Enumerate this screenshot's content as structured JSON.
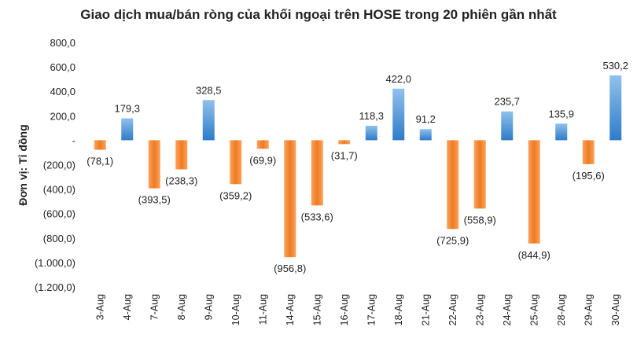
{
  "chart_data": {
    "type": "bar",
    "title": "Giao dịch mua/bán ròng của khối ngoại trên HOSE trong 20 phiên gần nhất",
    "ylabel": "Đơn vị: Tỉ đồng",
    "xlabel": "",
    "ylim": [
      -1200,
      800
    ],
    "yticks": [
      800,
      600,
      400,
      200,
      0,
      -200,
      -400,
      -600,
      -800,
      -1000,
      -1200
    ],
    "ytick_labels": [
      "800,0",
      "600,0",
      "400,0",
      "200,0",
      "-",
      "(200,0)",
      "(400,0)",
      "(600,0)",
      "(800,0)",
      "(1.000,0)",
      "(1.200,0)"
    ],
    "categories": [
      "3-Aug",
      "4-Aug",
      "7-Aug",
      "8-Aug",
      "9-Aug",
      "10-Aug",
      "11-Aug",
      "14-Aug",
      "15-Aug",
      "16-Aug",
      "17-Aug",
      "18-Aug",
      "21-Aug",
      "22-Aug",
      "23-Aug",
      "24-Aug",
      "25-Aug",
      "28-Aug",
      "29-Aug",
      "30-Aug"
    ],
    "values": [
      -78.1,
      179.3,
      -393.5,
      -238.3,
      328.5,
      -359.2,
      -69.9,
      -956.8,
      -533.6,
      -31.7,
      118.3,
      422.0,
      91.2,
      -725.9,
      -558.9,
      235.7,
      -844.9,
      135.9,
      -195.6,
      530.2
    ],
    "data_labels": [
      "(78,1)",
      "179,3",
      "(393,5)",
      "(238,3)",
      "328,5",
      "(359,2)",
      "(69,9)",
      "(956,8)",
      "(533,6)",
      "(31,7)",
      "118,3",
      "422,0",
      "91,2",
      "(725,9)",
      "(558,9)",
      "235,7",
      "(844,9)",
      "135,9",
      "(195,6)",
      "530,2"
    ],
    "colors": {
      "positive_top": "#8fc1ec",
      "positive_bottom": "#2f7bc9",
      "negative_light": "#fba35a",
      "negative_dark": "#ef7a24"
    },
    "grid": false,
    "legend": "none"
  }
}
